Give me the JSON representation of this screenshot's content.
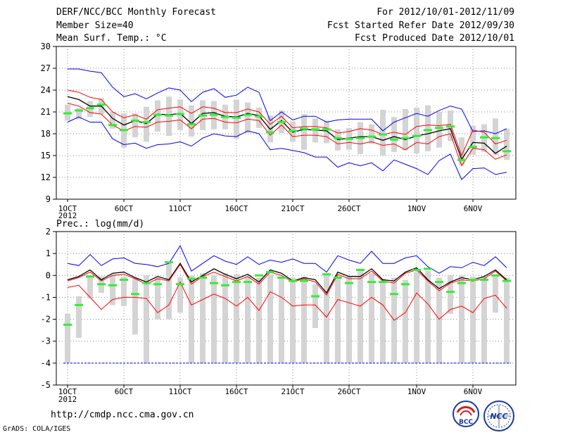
{
  "header": {
    "title": "DERF/NCC/BCC Monthly Forecast",
    "member": "Member Size=40",
    "variable": "Mean Surf. Temp.: °C",
    "period": "For 2012/10/01-2012/11/09",
    "started": "Fcst Started Refer Date 2012/09/30",
    "produced": "Fcst Produced Date 2012/10/01"
  },
  "footer": {
    "url": "http://cmdp.ncc.cma.gov.cn",
    "grads": "GrADS: COLA/IGES",
    "logo_bcc": "BCC",
    "logo_ncc": "NCC"
  },
  "colors": {
    "box": "#d4d4d4",
    "median": "#33ee33",
    "mean": "#000000",
    "spread": "#ff0000",
    "envelope": "#0000ee",
    "grid": "#888888"
  },
  "chart_data": [
    {
      "id": "temperature",
      "type": "line",
      "title": "Mean Surf. Temp.: °C",
      "x_start": "2012-10-01",
      "days": 40,
      "x_ticks": [
        {
          "day": 0,
          "label": "1OCT"
        },
        {
          "day": 5,
          "label": "6OCT"
        },
        {
          "day": 10,
          "label": "11OCT"
        },
        {
          "day": 15,
          "label": "16OCT"
        },
        {
          "day": 20,
          "label": "21OCT"
        },
        {
          "day": 25,
          "label": "26OCT"
        },
        {
          "day": 31,
          "label": "1NOV"
        },
        {
          "day": 36,
          "label": "6NOV"
        }
      ],
      "x_sub_label": "2012",
      "ylim": [
        9,
        30
      ],
      "y_ticks": [
        9,
        12,
        15,
        18,
        21,
        24,
        27,
        30
      ],
      "grid": true,
      "series": [
        {
          "name": "max",
          "color": "#0000ee",
          "values": [
            26.9,
            26.9,
            26.6,
            26.4,
            24.4,
            23.1,
            23.5,
            22.8,
            23.6,
            24.3,
            24.0,
            22.4,
            23.7,
            24.2,
            23.0,
            23.3,
            24.4,
            23.7,
            19.8,
            21.0,
            19.9,
            20.4,
            20.4,
            19.6,
            19.9,
            20.0,
            20.0,
            20.0,
            18.4,
            19.6,
            20.2,
            20.8,
            20.4,
            21.2,
            21.8,
            21.4,
            18.3,
            18.4,
            18.0,
            18.7
          ]
        },
        {
          "name": "mean_plus_sd",
          "color": "#ff0000",
          "values": [
            24.0,
            23.7,
            23.0,
            22.7,
            21.0,
            20.2,
            20.6,
            20.0,
            21.3,
            21.5,
            21.7,
            20.8,
            21.7,
            21.5,
            20.9,
            20.9,
            21.4,
            21.0,
            19.3,
            20.4,
            18.8,
            19.0,
            19.0,
            18.8,
            18.1,
            18.3,
            18.7,
            18.5,
            17.9,
            18.2,
            17.9,
            19.0,
            19.2,
            19.1,
            19.3,
            15.0,
            18.5,
            18.2,
            16.6,
            17.1
          ]
        },
        {
          "name": "mean",
          "color": "#000000",
          "values": [
            23.1,
            22.7,
            21.8,
            21.8,
            20.1,
            19.2,
            19.8,
            19.4,
            20.7,
            20.6,
            20.8,
            19.4,
            20.8,
            20.9,
            20.4,
            20.3,
            20.8,
            20.5,
            18.6,
            19.8,
            18.2,
            18.6,
            18.5,
            18.4,
            17.2,
            17.4,
            17.6,
            17.6,
            17.1,
            17.6,
            17.2,
            17.7,
            18.0,
            18.4,
            18.7,
            14.5,
            16.8,
            16.7,
            15.3,
            16.3
          ]
        },
        {
          "name": "mean_minus_sd",
          "color": "#ff0000",
          "values": [
            22.2,
            21.8,
            20.9,
            20.7,
            19.2,
            18.4,
            19.0,
            18.9,
            19.6,
            19.7,
            19.9,
            18.7,
            20.0,
            20.1,
            19.6,
            19.5,
            20.0,
            19.8,
            17.8,
            19.2,
            17.6,
            17.8,
            17.8,
            17.6,
            16.6,
            16.8,
            16.6,
            16.9,
            16.4,
            16.6,
            15.8,
            16.8,
            16.6,
            17.6,
            18.0,
            13.6,
            16.0,
            15.8,
            14.5,
            15.1
          ]
        },
        {
          "name": "min",
          "color": "#0000ee",
          "values": [
            19.6,
            20.3,
            19.6,
            19.6,
            17.3,
            16.5,
            16.7,
            16.0,
            16.5,
            16.6,
            16.9,
            16.3,
            17.4,
            18.0,
            17.7,
            17.6,
            18.4,
            18.0,
            15.8,
            16.0,
            15.7,
            15.4,
            14.8,
            14.8,
            13.4,
            14.0,
            13.6,
            14.0,
            12.9,
            14.4,
            13.8,
            13.2,
            12.4,
            14.3,
            15.2,
            11.7,
            13.2,
            13.3,
            12.4,
            12.7
          ]
        }
      ],
      "boxes": [
        {
          "day": 0,
          "low": 19.8,
          "high": 22.0,
          "median": 20.8
        },
        {
          "day": 1,
          "low": 20.0,
          "high": 21.5,
          "median": 21.2
        },
        {
          "day": 2,
          "low": 20.3,
          "high": 22.5,
          "median": 21.5
        },
        {
          "day": 3,
          "low": 20.7,
          "high": 22.9,
          "median": 22.0
        },
        {
          "day": 4,
          "low": 18.7,
          "high": 21.0,
          "median": 19.2
        },
        {
          "day": 5,
          "low": 16.1,
          "high": 20.8,
          "median": 18.5
        },
        {
          "day": 6,
          "low": 17.5,
          "high": 20.8,
          "median": 19.8
        },
        {
          "day": 7,
          "low": 16.9,
          "high": 21.7,
          "median": 19.6
        },
        {
          "day": 8,
          "low": 18.3,
          "high": 22.6,
          "median": 20.6
        },
        {
          "day": 9,
          "low": 17.7,
          "high": 23.1,
          "median": 20.5
        },
        {
          "day": 10,
          "low": 18.5,
          "high": 22.7,
          "median": 20.7
        },
        {
          "day": 11,
          "low": 17.6,
          "high": 21.9,
          "median": 19.3
        },
        {
          "day": 12,
          "low": 18.5,
          "high": 22.6,
          "median": 20.5
        },
        {
          "day": 13,
          "low": 18.6,
          "high": 22.5,
          "median": 20.6
        },
        {
          "day": 14,
          "low": 18.6,
          "high": 22.0,
          "median": 20.3
        },
        {
          "day": 15,
          "low": 17.3,
          "high": 22.7,
          "median": 20.2
        },
        {
          "day": 16,
          "low": 18.1,
          "high": 22.3,
          "median": 20.6
        },
        {
          "day": 17,
          "low": 18.8,
          "high": 21.6,
          "median": 20.4
        },
        {
          "day": 18,
          "low": 16.8,
          "high": 20.5,
          "median": 18.2
        },
        {
          "day": 19,
          "low": 18.1,
          "high": 21.2,
          "median": 19.6
        },
        {
          "day": 20,
          "low": 16.9,
          "high": 19.7,
          "median": 18.4
        },
        {
          "day": 21,
          "low": 15.8,
          "high": 20.7,
          "median": 18.7
        },
        {
          "day": 22,
          "low": 16.8,
          "high": 20.1,
          "median": 18.6
        },
        {
          "day": 23,
          "low": 16.7,
          "high": 19.8,
          "median": 18.6
        },
        {
          "day": 24,
          "low": 15.7,
          "high": 18.6,
          "median": 17.4
        },
        {
          "day": 25,
          "low": 15.8,
          "high": 18.8,
          "median": 17.3
        },
        {
          "day": 26,
          "low": 15.2,
          "high": 19.6,
          "median": 17.4
        },
        {
          "day": 27,
          "low": 16.6,
          "high": 19.3,
          "median": 17.6
        },
        {
          "day": 28,
          "low": 15.0,
          "high": 21.3,
          "median": 17.9
        },
        {
          "day": 29,
          "low": 15.5,
          "high": 20.3,
          "median": 17.2
        },
        {
          "day": 30,
          "low": 15.7,
          "high": 21.4,
          "median": 17.4
        },
        {
          "day": 31,
          "low": 15.3,
          "high": 21.6,
          "median": 17.7
        },
        {
          "day": 32,
          "low": 15.6,
          "high": 21.9,
          "median": 18.5
        },
        {
          "day": 33,
          "low": 16.1,
          "high": 21.0,
          "median": 18.8
        },
        {
          "day": 34,
          "low": 17.0,
          "high": 21.2,
          "median": 19.0
        },
        {
          "day": 35,
          "low": 13.7,
          "high": 17.5,
          "median": 14.4
        },
        {
          "day": 36,
          "low": 15.1,
          "high": 19.1,
          "median": 16.2
        },
        {
          "day": 37,
          "low": 15.5,
          "high": 19.3,
          "median": 17.5
        },
        {
          "day": 38,
          "low": 15.1,
          "high": 20.1,
          "median": 17.4
        },
        {
          "day": 39,
          "low": 14.4,
          "high": 18.7,
          "median": 15.6
        }
      ]
    },
    {
      "id": "precipitation",
      "type": "line",
      "title": "Prec.: log(mm/d)",
      "x_start": "2012-10-01",
      "days": 40,
      "x_ticks": [
        {
          "day": 0,
          "label": "1OCT"
        },
        {
          "day": 5,
          "label": "6OCT"
        },
        {
          "day": 10,
          "label": "11OCT"
        },
        {
          "day": 15,
          "label": "16OCT"
        },
        {
          "day": 20,
          "label": "21OCT"
        },
        {
          "day": 25,
          "label": "26OCT"
        },
        {
          "day": 31,
          "label": "1NOV"
        },
        {
          "day": 36,
          "label": "6NOV"
        }
      ],
      "x_sub_label": "2012",
      "ylim": [
        -5,
        2
      ],
      "y_ticks": [
        -5,
        -4,
        -3,
        -2,
        -1,
        0,
        1,
        2
      ],
      "baseline": -4,
      "grid": true,
      "series": [
        {
          "name": "max",
          "color": "#0000ee",
          "values": [
            0.55,
            0.45,
            0.95,
            0.45,
            0.75,
            0.8,
            0.55,
            0.5,
            0.4,
            0.55,
            1.35,
            0.2,
            0.55,
            0.9,
            0.65,
            0.5,
            0.85,
            0.5,
            0.7,
            0.6,
            0.75,
            0.55,
            0.55,
            0.15,
            0.9,
            0.7,
            0.55,
            1.1,
            0.55,
            0.55,
            0.8,
            0.9,
            0.4,
            0.1,
            0.4,
            0.35,
            0.6,
            0.45,
            0.85,
            0.35
          ]
        },
        {
          "name": "mean",
          "color": "#000000",
          "values": [
            -0.2,
            -0.05,
            0.25,
            -0.2,
            0.1,
            0.15,
            -0.1,
            -0.3,
            -0.05,
            -0.2,
            0.55,
            -0.3,
            0.0,
            0.3,
            0.05,
            -0.15,
            0.05,
            -0.3,
            0.25,
            0.1,
            -0.25,
            -0.1,
            -0.2,
            -0.8,
            0.15,
            -0.05,
            -0.05,
            0.3,
            -0.2,
            -0.25,
            0.15,
            0.35,
            -0.2,
            -0.6,
            -0.3,
            -0.1,
            -0.2,
            -0.05,
            0.25,
            -0.2
          ]
        },
        {
          "name": "mean_plus_sd",
          "color": "#ff0000",
          "values": [
            -0.25,
            -0.1,
            0.15,
            -0.25,
            0.0,
            0.05,
            -0.15,
            -0.4,
            -0.15,
            -0.25,
            0.5,
            -0.4,
            -0.05,
            0.15,
            -0.05,
            -0.25,
            -0.05,
            -0.4,
            0.15,
            0.0,
            -0.3,
            -0.15,
            -0.3,
            -0.9,
            0.05,
            -0.15,
            -0.15,
            0.2,
            -0.25,
            -0.35,
            0.1,
            0.25,
            -0.25,
            -0.7,
            -0.35,
            -0.2,
            -0.25,
            -0.15,
            0.2,
            -0.25
          ]
        },
        {
          "name": "mean_minus_sd",
          "color": "#ff0000",
          "values": [
            -0.55,
            -0.45,
            -1.0,
            -1.55,
            -1.1,
            -1.0,
            -1.0,
            -1.05,
            -1.7,
            -1.35,
            -0.3,
            -1.35,
            -1.1,
            -0.85,
            -1.05,
            -1.4,
            -1.0,
            -1.6,
            -0.75,
            -1.0,
            -1.4,
            -1.35,
            -1.35,
            -1.9,
            -1.1,
            -1.25,
            -1.4,
            -1.0,
            -1.35,
            -2.05,
            -1.7,
            -0.8,
            -1.3,
            -2.0,
            -1.55,
            -1.4,
            -1.7,
            -1.05,
            -0.9,
            -1.5
          ]
        }
      ],
      "boxes": [
        {
          "day": 0,
          "low": -4.0,
          "high": -1.75,
          "median": -2.25
        },
        {
          "day": 1,
          "low": -2.85,
          "high": -0.95,
          "median": -1.35
        },
        {
          "day": 2,
          "low": -1.05,
          "high": -0.1,
          "median": -0.05
        },
        {
          "day": 3,
          "low": -0.8,
          "high": -0.05,
          "median": -0.4
        },
        {
          "day": 4,
          "low": -1.35,
          "high": 0.05,
          "median": -0.45
        },
        {
          "day": 5,
          "low": -1.4,
          "high": -0.05,
          "median": -0.2
        },
        {
          "day": 6,
          "low": -2.7,
          "high": -0.15,
          "median": -0.85
        },
        {
          "day": 7,
          "low": -4.0,
          "high": 0.0,
          "median": -0.35
        },
        {
          "day": 8,
          "low": -2.0,
          "high": -0.1,
          "median": -0.4
        },
        {
          "day": 9,
          "low": -2.0,
          "high": 0.55,
          "median": 0.6
        },
        {
          "day": 10,
          "low": -1.7,
          "high": -0.1,
          "median": -0.4
        },
        {
          "day": 11,
          "low": -4.0,
          "high": 0.0,
          "median": -0.15
        },
        {
          "day": 12,
          "low": -4.0,
          "high": 0.1,
          "median": -0.1
        },
        {
          "day": 13,
          "low": -4.0,
          "high": 0.0,
          "median": -0.35
        },
        {
          "day": 14,
          "low": -4.0,
          "high": 0.1,
          "median": -0.45
        },
        {
          "day": 15,
          "low": -4.0,
          "high": 0.05,
          "median": -0.3
        },
        {
          "day": 16,
          "low": -4.0,
          "high": -0.05,
          "median": -0.3
        },
        {
          "day": 17,
          "low": -4.0,
          "high": -0.1,
          "median": 0.0
        },
        {
          "day": 18,
          "low": -4.0,
          "high": 0.05,
          "median": 0.15
        },
        {
          "day": 19,
          "low": -4.0,
          "high": -0.05,
          "median": -0.1
        },
        {
          "day": 20,
          "low": -4.0,
          "high": -0.1,
          "median": -0.25
        },
        {
          "day": 21,
          "low": -4.0,
          "high": -0.05,
          "median": -0.25
        },
        {
          "day": 22,
          "low": -2.4,
          "high": -0.4,
          "median": -0.95
        },
        {
          "day": 23,
          "low": -4.0,
          "high": 0.1,
          "median": 0.05
        },
        {
          "day": 24,
          "low": -4.0,
          "high": 0.0,
          "median": -0.1
        },
        {
          "day": 25,
          "low": -4.0,
          "high": -0.05,
          "median": -0.35
        },
        {
          "day": 26,
          "low": -4.0,
          "high": 0.2,
          "median": 0.25
        },
        {
          "day": 27,
          "low": -4.0,
          "high": 0.1,
          "median": -0.3
        },
        {
          "day": 28,
          "low": -4.0,
          "high": -0.15,
          "median": -0.3
        },
        {
          "day": 29,
          "low": -4.0,
          "high": -0.1,
          "median": -0.85
        },
        {
          "day": 30,
          "low": -4.0,
          "high": -0.2,
          "median": -0.4
        },
        {
          "day": 31,
          "low": -4.0,
          "high": 0.15,
          "median": 0.25
        },
        {
          "day": 32,
          "low": -4.0,
          "high": 0.2,
          "median": 0.3
        },
        {
          "day": 33,
          "low": -4.0,
          "high": -0.1,
          "median": -0.3
        },
        {
          "day": 34,
          "low": -1.75,
          "high": 0.0,
          "median": -0.75
        },
        {
          "day": 35,
          "low": -4.0,
          "high": 0.0,
          "median": -0.35
        },
        {
          "day": 36,
          "low": -4.0,
          "high": -0.05,
          "median": -0.2
        },
        {
          "day": 37,
          "low": -4.0,
          "high": -0.05,
          "median": -0.2
        },
        {
          "day": 38,
          "low": -1.7,
          "high": 0.0,
          "median": 0.0
        },
        {
          "day": 39,
          "low": -4.0,
          "high": -0.1,
          "median": -0.25
        }
      ]
    }
  ]
}
